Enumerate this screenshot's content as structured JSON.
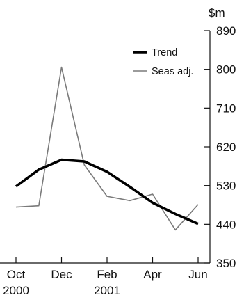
{
  "chart_data": {
    "type": "line",
    "title": "",
    "xlabel": "",
    "ylabel": "",
    "y_unit_label": "$m",
    "x_months": [
      "Oct 2000",
      "Nov 2000",
      "Dec 2000",
      "Jan 2001",
      "Feb 2001",
      "Mar 2001",
      "Apr 2001",
      "May 2001",
      "Jun 2001"
    ],
    "x_tick_labels": [
      {
        "month": "Oct 2000",
        "line1": "Oct",
        "line2": "2000"
      },
      {
        "month": "Dec 2000",
        "line1": "Dec",
        "line2": ""
      },
      {
        "month": "Feb 2001",
        "line1": "Feb",
        "line2": "2001"
      },
      {
        "month": "Apr 2001",
        "line1": "Apr",
        "line2": ""
      },
      {
        "month": "Jun 2001",
        "line1": "Jun",
        "line2": ""
      }
    ],
    "y_ticks": [
      350,
      440,
      530,
      620,
      710,
      800,
      890
    ],
    "ylim": [
      350,
      890
    ],
    "y_axis_side": "right",
    "grid": false,
    "legend_position": "top-right",
    "series": [
      {
        "name": "Trend",
        "color": "#000000",
        "style": "thick",
        "values": [
          528,
          567,
          590,
          586,
          562,
          527,
          490,
          464,
          441
        ]
      },
      {
        "name": "Seas adj.",
        "color": "#7a7a7a",
        "style": "thin",
        "values": [
          480,
          483,
          805,
          578,
          505,
          495,
          510,
          427,
          486
        ]
      }
    ]
  }
}
